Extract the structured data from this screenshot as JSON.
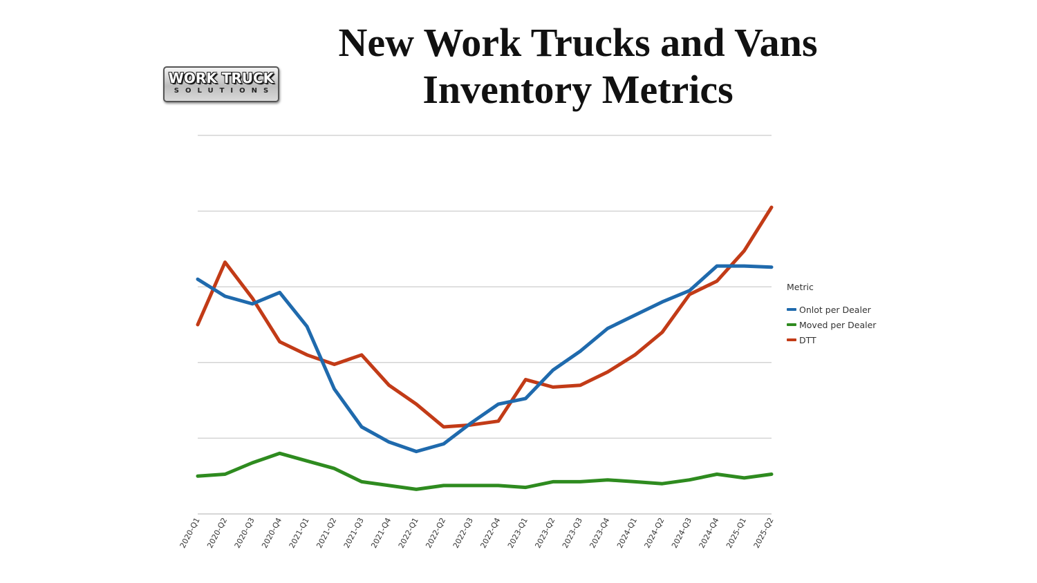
{
  "title": {
    "line1": "New Work Trucks and Vans",
    "line2": "Inventory Metrics"
  },
  "logo": {
    "main": "WORK TRUCK",
    "sub": "SOLUTIONS"
  },
  "chart_data": {
    "type": "line",
    "title": "New Work Trucks and Vans Inventory Metrics",
    "xlabel": "",
    "ylabel": "",
    "ylim": [
      0,
      100
    ],
    "grid": true,
    "legend_position": "right",
    "legend_title": "Metric",
    "categories": [
      "2020-Q1",
      "2020-Q2",
      "2020-Q3",
      "2020-Q4",
      "2021-Q1",
      "2021-Q2",
      "2021-Q3",
      "2021-Q4",
      "2022-Q1",
      "2022-Q2",
      "2022-Q3",
      "2022-Q4",
      "2023-Q1",
      "2023-Q2",
      "2023-Q3",
      "2023-Q4",
      "2024-Q1",
      "2024-Q2",
      "2024-Q3",
      "2024-Q4",
      "2025-Q1",
      "2025-Q2"
    ],
    "series": [
      {
        "name": "Onlot per Dealer",
        "color": "#1f6aad",
        "values": [
          62,
          57.5,
          55.5,
          58.5,
          49.5,
          33,
          23,
          19,
          16.5,
          18.5,
          24,
          29,
          30.5,
          38,
          43,
          49,
          52.5,
          56,
          59,
          65.5,
          65.5,
          65.2
        ]
      },
      {
        "name": "Moved per Dealer",
        "color": "#2e8b1f",
        "values": [
          10,
          10.5,
          13.5,
          16,
          14,
          12,
          8.5,
          7.5,
          6.5,
          7.5,
          7.5,
          7.5,
          7,
          8.5,
          8.5,
          9,
          8.5,
          8,
          9,
          10.5,
          9.5,
          10.5
        ]
      },
      {
        "name": "DTT",
        "color": "#c23b17",
        "values": [
          50,
          66.5,
          57,
          45.5,
          42,
          39.5,
          42,
          34,
          29,
          23,
          23.5,
          24.5,
          35.5,
          33.5,
          34,
          37.5,
          42,
          48,
          58,
          61.5,
          69.5,
          81
        ]
      }
    ]
  }
}
